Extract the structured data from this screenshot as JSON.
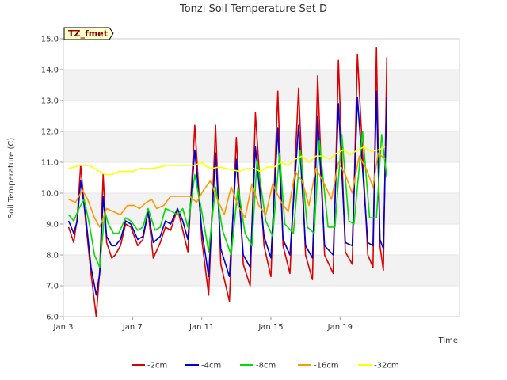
{
  "chart_data": {
    "type": "line",
    "title": "Tonzi Soil Temperature Set D",
    "xlabel": "Time",
    "ylabel": "Soil Temperature (C)",
    "annotation": "TZ_fmet",
    "ylim": [
      6.0,
      15.0
    ],
    "xlim": [
      0,
      22.9
    ],
    "y_ticks": [
      "6.0",
      "7.0",
      "8.0",
      "9.0",
      "10.0",
      "11.0",
      "12.0",
      "13.0",
      "14.0",
      "15.0"
    ],
    "x_ticks": [
      {
        "x": 0,
        "label": "Jan 3"
      },
      {
        "x": 4,
        "label": "Jan 7"
      },
      {
        "x": 8,
        "label": "Jan 11"
      },
      {
        "x": 12,
        "label": "Jan 15"
      },
      {
        "x": 16,
        "label": "Jan 19"
      }
    ],
    "legend_position": "bottom",
    "grid": "alternating horizontal bands",
    "series": [
      {
        "name": "-2cm",
        "color": "#dd0000",
        "x": [
          0.3,
          0.6,
          0.8,
          1.0,
          1.3,
          1.6,
          1.9,
          2.1,
          2.3,
          2.5,
          2.8,
          3.0,
          3.3,
          3.6,
          3.9,
          4.3,
          4.6,
          4.9,
          5.2,
          5.6,
          5.9,
          6.2,
          6.6,
          6.9,
          7.2,
          7.6,
          8.0,
          8.4,
          8.8,
          9.1,
          9.6,
          10.0,
          10.4,
          10.8,
          11.1,
          11.6,
          12.0,
          12.4,
          12.7,
          13.1,
          13.6,
          14.0,
          14.4,
          14.7,
          15.1,
          15.6,
          15.9,
          16.3,
          16.7,
          17.0,
          17.6,
          17.9,
          18.1,
          18.3,
          18.5,
          18.7
        ],
        "y": [
          8.9,
          8.4,
          9.2,
          10.9,
          9.0,
          7.4,
          6.0,
          7.5,
          10.6,
          8.4,
          7.9,
          8.0,
          8.3,
          9.0,
          8.9,
          8.3,
          8.5,
          9.4,
          7.9,
          8.4,
          8.9,
          8.8,
          9.5,
          8.8,
          8.1,
          12.2,
          8.5,
          6.7,
          12.2,
          7.7,
          6.5,
          11.8,
          7.7,
          7.0,
          12.6,
          8.3,
          7.3,
          13.3,
          8.3,
          7.4,
          13.4,
          8.0,
          7.2,
          13.8,
          8.0,
          7.4,
          14.3,
          8.1,
          7.7,
          14.5,
          8.0,
          7.6,
          14.7,
          8.3,
          7.5,
          14.4
        ]
      },
      {
        "name": "-4cm",
        "color": "#0000cc",
        "x": [
          0.3,
          0.6,
          0.8,
          1.0,
          1.3,
          1.6,
          1.9,
          2.1,
          2.3,
          2.5,
          2.8,
          3.0,
          3.3,
          3.6,
          3.9,
          4.3,
          4.6,
          4.9,
          5.2,
          5.6,
          5.9,
          6.2,
          6.6,
          6.9,
          7.2,
          7.6,
          8.0,
          8.4,
          8.8,
          9.1,
          9.6,
          10.0,
          10.4,
          10.8,
          11.1,
          11.6,
          12.0,
          12.4,
          12.7,
          13.1,
          13.6,
          14.0,
          14.4,
          14.7,
          15.1,
          15.6,
          15.9,
          16.3,
          16.7,
          17.0,
          17.6,
          17.9,
          18.1,
          18.3,
          18.5,
          18.7
        ],
        "y": [
          9.1,
          8.7,
          9.1,
          10.4,
          9.2,
          7.6,
          6.7,
          7.4,
          9.9,
          8.6,
          8.3,
          8.3,
          8.5,
          9.1,
          9.0,
          8.5,
          8.6,
          9.4,
          8.4,
          8.6,
          9.1,
          9.0,
          9.5,
          9.1,
          8.5,
          11.4,
          8.8,
          7.3,
          11.3,
          8.2,
          7.3,
          11.1,
          8.0,
          7.6,
          11.5,
          8.6,
          7.9,
          12.1,
          8.5,
          8.0,
          12.2,
          8.3,
          7.9,
          12.5,
          8.3,
          8.0,
          12.9,
          8.4,
          8.3,
          13.1,
          8.4,
          8.3,
          13.3,
          8.5,
          8.2,
          13.1
        ]
      },
      {
        "name": "-8cm",
        "color": "#00dd00",
        "x": [
          0.3,
          0.6,
          0.9,
          1.2,
          1.5,
          1.8,
          2.1,
          2.4,
          2.6,
          2.9,
          3.2,
          3.6,
          3.9,
          4.3,
          4.6,
          4.9,
          5.3,
          5.6,
          5.9,
          6.3,
          6.6,
          6.9,
          7.2,
          7.6,
          8.0,
          8.4,
          8.8,
          9.2,
          9.7,
          10.1,
          10.5,
          10.9,
          11.2,
          11.7,
          12.1,
          12.5,
          12.8,
          13.3,
          13.7,
          14.1,
          14.5,
          14.8,
          15.3,
          15.7,
          16.1,
          16.5,
          16.8,
          17.3,
          17.7,
          18.1,
          18.4,
          18.7
        ],
        "y": [
          9.3,
          9.1,
          9.5,
          9.8,
          9.0,
          8.0,
          7.6,
          9.4,
          9.0,
          8.7,
          8.7,
          9.2,
          9.1,
          8.8,
          8.9,
          9.5,
          8.8,
          8.9,
          9.5,
          9.4,
          9.3,
          9.5,
          8.9,
          10.6,
          9.4,
          8.1,
          10.2,
          8.8,
          8.0,
          10.2,
          8.7,
          8.3,
          11.1,
          9.1,
          8.6,
          11.3,
          9.0,
          8.7,
          11.4,
          8.9,
          8.7,
          11.7,
          8.9,
          8.9,
          11.9,
          9.1,
          9.0,
          12.0,
          9.2,
          9.2,
          11.9,
          10.5
        ]
      },
      {
        "name": "-16cm",
        "color": "#ff9900",
        "x": [
          0.3,
          0.7,
          1.1,
          1.4,
          1.8,
          2.1,
          2.5,
          2.9,
          3.3,
          3.7,
          4.1,
          4.4,
          4.8,
          5.1,
          5.4,
          5.8,
          6.2,
          6.5,
          6.9,
          7.3,
          7.7,
          8.1,
          8.5,
          8.9,
          9.3,
          9.7,
          10.1,
          10.5,
          10.9,
          11.3,
          11.7,
          12.1,
          12.6,
          13.0,
          13.4,
          13.8,
          14.2,
          14.6,
          15.0,
          15.5,
          15.9,
          16.3,
          16.7,
          17.1,
          17.5,
          17.9,
          18.2,
          18.6
        ],
        "y": [
          9.8,
          9.7,
          10.1,
          9.8,
          9.2,
          8.9,
          9.5,
          9.4,
          9.3,
          9.6,
          9.6,
          9.5,
          9.7,
          9.8,
          9.5,
          9.6,
          9.9,
          9.9,
          9.9,
          9.9,
          9.7,
          10.1,
          10.4,
          9.8,
          9.3,
          10.2,
          9.6,
          9.2,
          10.3,
          9.6,
          9.3,
          10.3,
          9.7,
          9.4,
          10.7,
          10.4,
          9.6,
          10.8,
          10.4,
          9.8,
          11.0,
          10.6,
          10.0,
          11.2,
          10.8,
          10.2,
          11.3,
          11.1
        ]
      },
      {
        "name": "-32cm",
        "color": "#ffff00",
        "x": [
          0.3,
          1.0,
          1.5,
          1.8,
          2.1,
          2.4,
          2.8,
          3.2,
          3.6,
          4.0,
          4.4,
          4.8,
          5.2,
          5.6,
          6.0,
          6.4,
          6.8,
          7.2,
          7.6,
          8.0,
          8.3,
          8.6,
          9.0,
          9.4,
          9.8,
          10.2,
          10.6,
          11.0,
          11.4,
          11.8,
          12.2,
          12.6,
          13.0,
          13.4,
          13.8,
          14.2,
          14.6,
          15.0,
          15.4,
          15.8,
          16.2,
          16.6,
          17.0,
          17.4,
          17.8,
          18.2,
          18.6
        ],
        "y": [
          10.8,
          10.9,
          10.9,
          10.8,
          10.7,
          10.6,
          10.6,
          10.7,
          10.7,
          10.7,
          10.8,
          10.8,
          10.8,
          10.85,
          10.9,
          10.9,
          10.9,
          10.9,
          10.9,
          11.0,
          10.85,
          10.8,
          10.85,
          10.8,
          10.75,
          10.7,
          10.8,
          10.8,
          10.7,
          10.85,
          10.85,
          11.0,
          10.9,
          11.1,
          11.2,
          11.0,
          11.2,
          11.2,
          11.1,
          11.3,
          11.4,
          11.25,
          11.4,
          11.5,
          11.35,
          11.4,
          11.5
        ]
      }
    ]
  }
}
